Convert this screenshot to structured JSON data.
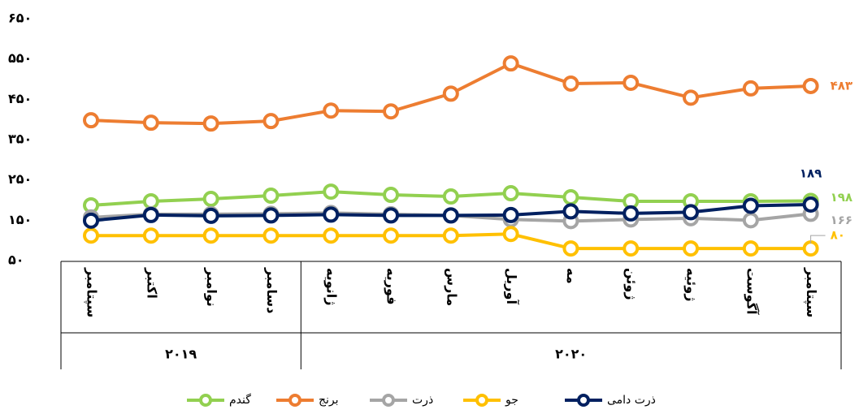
{
  "chart_data": {
    "type": "line",
    "categories": [
      "سپتامبر",
      "اکتبر",
      "نوامبر",
      "دسامبر",
      "ژانویه",
      "فوریه",
      "مارس",
      "آوریل",
      "مه",
      "ژوئن",
      "ژوئیه",
      "آگوست",
      "سپتامبر"
    ],
    "category_groups": [
      {
        "label": "۲۰۱۹",
        "size": 4
      },
      {
        "label": "۲۰۲۰",
        "size": 9
      }
    ],
    "ylim": [
      50,
      650
    ],
    "yticks": [
      {
        "value": 50,
        "label": "۵۰"
      },
      {
        "value": 150,
        "label": "۱۵۰"
      },
      {
        "value": 250,
        "label": "۲۵۰"
      },
      {
        "value": 350,
        "label": "۳۵۰"
      },
      {
        "value": 450,
        "label": "۴۵۰"
      },
      {
        "value": 550,
        "label": "۵۵۰"
      },
      {
        "value": 650,
        "label": "۶۵۰"
      }
    ],
    "grid": false,
    "legend": "bottom",
    "series": [
      {
        "name": "گندم",
        "color": "#92d050",
        "values": [
          187,
          197,
          203,
          211,
          221,
          213,
          209,
          217,
          207,
          197,
          197,
          197,
          198
        ],
        "value_labels": [
          null,
          null,
          null,
          null,
          null,
          null,
          null,
          null,
          null,
          null,
          null,
          null,
          "۱۹۸"
        ]
      },
      {
        "name": "برنج",
        "color": "#ed7d31",
        "values": [
          398,
          392,
          390,
          396,
          422,
          420,
          464,
          539,
          489,
          491,
          454,
          477,
          483
        ],
        "value_labels": [
          null,
          null,
          null,
          null,
          null,
          null,
          null,
          null,
          null,
          null,
          null,
          null,
          "۴۸۳"
        ]
      },
      {
        "name": "ذرت",
        "color": "#a5a5a5",
        "values": [
          157,
          165,
          165,
          166,
          168,
          165,
          162,
          152,
          148,
          152,
          155,
          150,
          166
        ],
        "value_labels": [
          null,
          null,
          null,
          null,
          null,
          null,
          null,
          null,
          null,
          null,
          null,
          null,
          "۱۶۶"
        ]
      },
      {
        "name": "جو",
        "color": "#ffc000",
        "values": [
          112,
          112,
          112,
          112,
          112,
          112,
          112,
          116,
          80,
          80,
          80,
          80,
          80
        ],
        "value_labels": [
          null,
          null,
          null,
          null,
          null,
          null,
          null,
          null,
          null,
          null,
          null,
          null,
          "۸۰"
        ]
      },
      {
        "name": "ذرت دامی",
        "color": "#002060",
        "values": [
          149,
          163,
          161,
          162,
          164,
          162,
          162,
          163,
          172,
          167,
          170,
          186,
          189
        ],
        "value_labels": [
          null,
          null,
          null,
          null,
          null,
          null,
          null,
          null,
          null,
          null,
          null,
          null,
          "۱۸۹"
        ]
      }
    ]
  }
}
